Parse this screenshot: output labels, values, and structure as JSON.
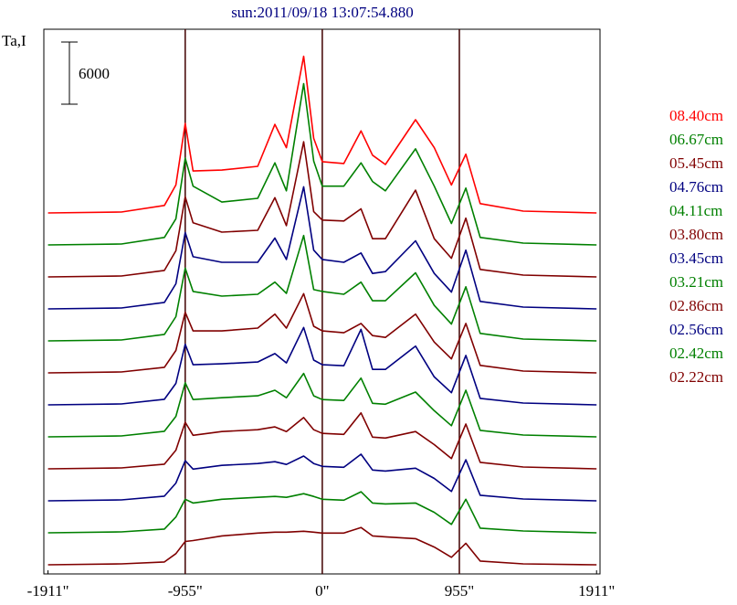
{
  "chart_data": {
    "type": "line",
    "title": "sun:2011/09/18 13:07:54.880",
    "ylabel": "Ta,I",
    "scale_bar": 6000,
    "xlim": [
      -1940,
      1935
    ],
    "xticks": [
      {
        "value": -1911,
        "label": "-1911\""
      },
      {
        "value": -955,
        "label": "-955\""
      },
      {
        "value": 0,
        "label": "0\""
      },
      {
        "value": 955,
        "label": "955\""
      },
      {
        "value": 1911,
        "label": "1911\""
      }
    ],
    "vertical_lines": [
      -955,
      0,
      955
    ],
    "x": [
      -1911,
      -1400,
      -1100,
      -1020,
      -955,
      -900,
      -700,
      -450,
      -330,
      -250,
      -130,
      -60,
      0,
      150,
      270,
      350,
      440,
      650,
      780,
      900,
      1000,
      1100,
      1400,
      1911
    ],
    "series": [
      {
        "name": "08.40cm",
        "color": "#ff0000",
        "values": [
          0,
          90,
          720,
          2700,
          8640,
          4050,
          4140,
          4500,
          8550,
          6300,
          15120,
          7200,
          4950,
          4770,
          7920,
          5580,
          4680,
          9000,
          6300,
          2700,
          5670,
          900,
          180,
          0
        ]
      },
      {
        "name": "06.67cm",
        "color": "#008000",
        "values": [
          0,
          90,
          720,
          2520,
          8370,
          5670,
          4140,
          4500,
          7920,
          5220,
          15570,
          8100,
          5670,
          5670,
          7920,
          6120,
          5220,
          9270,
          5670,
          2070,
          5490,
          720,
          180,
          0
        ]
      },
      {
        "name": "05.45cm",
        "color": "#800000",
        "values": [
          0,
          90,
          630,
          2520,
          7740,
          5220,
          4320,
          4500,
          7650,
          4950,
          13050,
          6300,
          5490,
          5400,
          6570,
          3690,
          3690,
          8370,
          3690,
          1800,
          5670,
          720,
          180,
          0
        ]
      },
      {
        "name": "04.76cm",
        "color": "#000080",
        "values": [
          0,
          90,
          630,
          2430,
          7380,
          5040,
          4500,
          4500,
          6840,
          4770,
          11790,
          5670,
          4770,
          4500,
          5400,
          3420,
          3600,
          6570,
          3420,
          1620,
          5670,
          720,
          180,
          0
        ]
      },
      {
        "name": "04.11cm",
        "color": "#008000",
        "values": [
          0,
          90,
          630,
          2340,
          7020,
          4770,
          4320,
          4500,
          5670,
          4590,
          10170,
          4950,
          4770,
          4500,
          5670,
          3870,
          3870,
          6570,
          3420,
          1620,
          5220,
          720,
          180,
          0
        ]
      },
      {
        "name": "03.80cm",
        "color": "#800000",
        "values": [
          0,
          90,
          540,
          2160,
          5850,
          4050,
          4050,
          4320,
          5670,
          4320,
          7650,
          4500,
          4050,
          3870,
          4770,
          3600,
          3420,
          5670,
          2970,
          1350,
          4770,
          720,
          180,
          0
        ]
      },
      {
        "name": "03.45cm",
        "color": "#000080",
        "values": [
          0,
          90,
          540,
          2070,
          5850,
          3870,
          3960,
          4140,
          4950,
          4050,
          7470,
          4320,
          3870,
          3780,
          7290,
          3420,
          3420,
          5670,
          2700,
          1170,
          4770,
          630,
          180,
          0
        ]
      },
      {
        "name": "03.21cm",
        "color": "#008000",
        "values": [
          0,
          90,
          540,
          1980,
          5220,
          3600,
          3780,
          3960,
          4500,
          3780,
          6120,
          3960,
          3600,
          3510,
          5670,
          3240,
          3150,
          4320,
          2520,
          1080,
          4500,
          630,
          180,
          0
        ]
      },
      {
        "name": "02.86cm",
        "color": "#800000",
        "values": [
          0,
          90,
          450,
          1800,
          4500,
          3240,
          3600,
          3780,
          4050,
          3600,
          4950,
          3780,
          3420,
          3330,
          5400,
          3060,
          2970,
          3600,
          2340,
          990,
          4320,
          630,
          180,
          0
        ]
      },
      {
        "name": "02.56cm",
        "color": "#000080",
        "values": [
          0,
          90,
          450,
          1710,
          3870,
          3060,
          3420,
          3600,
          3780,
          3510,
          4320,
          3600,
          3330,
          3240,
          4500,
          2970,
          2880,
          3150,
          2160,
          900,
          3960,
          540,
          180,
          0
        ]
      },
      {
        "name": "02.42cm",
        "color": "#008000",
        "values": [
          0,
          90,
          360,
          1530,
          3240,
          2880,
          3240,
          3420,
          3510,
          3420,
          3780,
          3510,
          3240,
          3150,
          3960,
          2880,
          2790,
          2880,
          1980,
          810,
          3240,
          450,
          180,
          0
        ]
      },
      {
        "name": "02.22cm",
        "color": "#800000",
        "values": [
          0,
          90,
          270,
          1080,
          2250,
          2340,
          2790,
          3060,
          3150,
          3150,
          3240,
          3150,
          3060,
          3060,
          3600,
          2790,
          2700,
          2520,
          1710,
          720,
          2070,
          360,
          90,
          0
        ]
      }
    ]
  }
}
